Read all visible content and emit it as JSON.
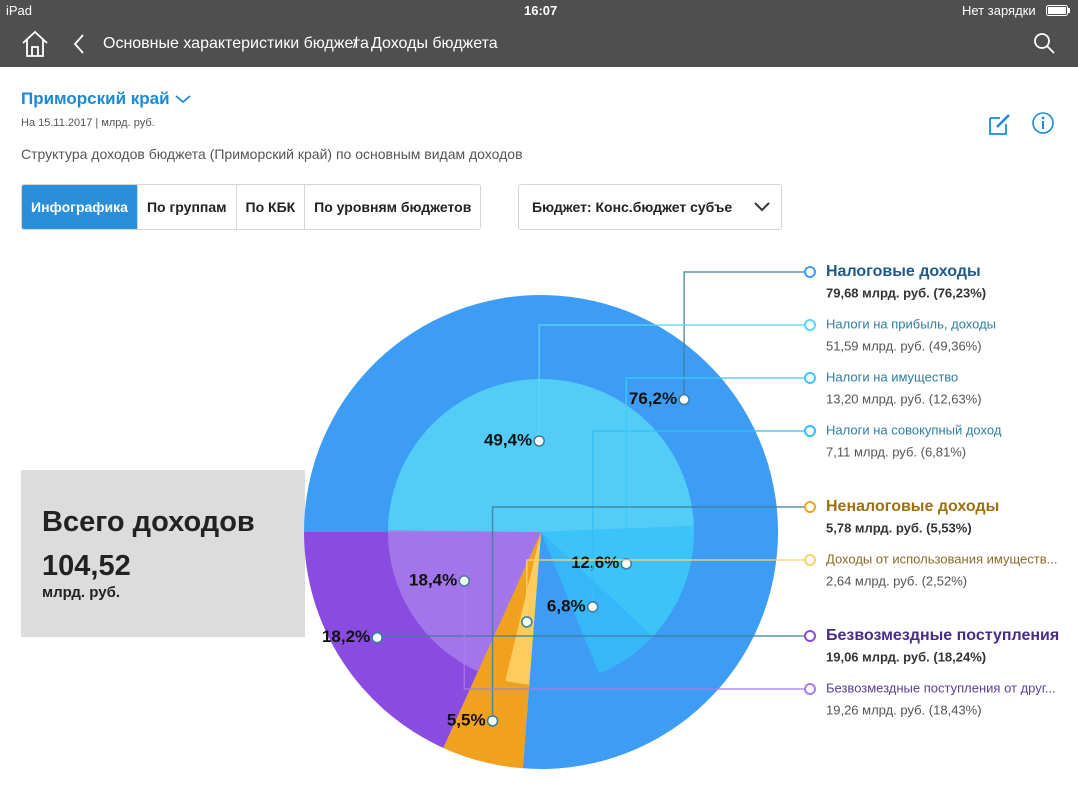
{
  "status_bar": {
    "device": "iPad",
    "time": "16:07",
    "battery": "Нет зарядки"
  },
  "nav": {
    "breadcrumb": [
      "Основные характеристики бюджета",
      "/",
      "Доходы бюджета"
    ]
  },
  "header": {
    "region": "Приморский край",
    "date": "На 15.11.2017 | млрд. руб.",
    "description": "Структура доходов бюджета (Приморский край) по основным видам доходов"
  },
  "tabs": [
    "Инфографика",
    "По группам",
    "По КБК",
    "По уровням бюджетов"
  ],
  "budget_select": "Бюджет: Конс.бюджет субъе",
  "chart_data": {
    "type": "pie",
    "total": {
      "label": "Всего доходов",
      "value": "104,52",
      "unit": "млрд. руб."
    },
    "groups": [
      {
        "name": "Налоговые доходы",
        "value": 76.23,
        "value_label": "76,2%",
        "detail": "79,68 млрд. руб. (76,23%)",
        "color": "#3d9df5",
        "children": [
          {
            "name": "Налоги на прибыль, доходы",
            "value": 49.36,
            "value_label": "49,4%",
            "detail": "51,59 млрд. руб. (49,36%)",
            "color": "#57d6f7"
          },
          {
            "name": "Налоги на имущество",
            "value": 12.63,
            "value_label": "12,6%",
            "detail": "13,20 млрд. руб. (12,63%)",
            "color": "#3ccaf8"
          },
          {
            "name": "Налоги на совокупный доход",
            "value": 6.81,
            "value_label": "6,8%",
            "detail": "7,11 млрд. руб. (6,81%)",
            "color": "#35bdf8"
          }
        ]
      },
      {
        "name": "Неналоговые доходы",
        "value": 5.53,
        "value_label": "5,5%",
        "detail": "5,78 млрд. руб. (5,53%)",
        "color": "#f0a21e",
        "children": [
          {
            "name": "Доходы от использования имуществ...",
            "value": 2.52,
            "value_label": null,
            "detail": "2,64 млрд. руб. (2,52%)",
            "color": "#ffd36b"
          }
        ]
      },
      {
        "name": "Безвозмездные поступления",
        "value": 18.24,
        "value_label": "18,2%",
        "detail": "19,06 млрд. руб. (18,24%)",
        "color": "#8a4be0",
        "children": [
          {
            "name": "Безвозмездные поступления от друг...",
            "value": 18.43,
            "value_label": "18,4%",
            "detail": "19,26 млрд. руб. (18,43%)",
            "color": "#a77ceb"
          }
        ]
      }
    ]
  }
}
